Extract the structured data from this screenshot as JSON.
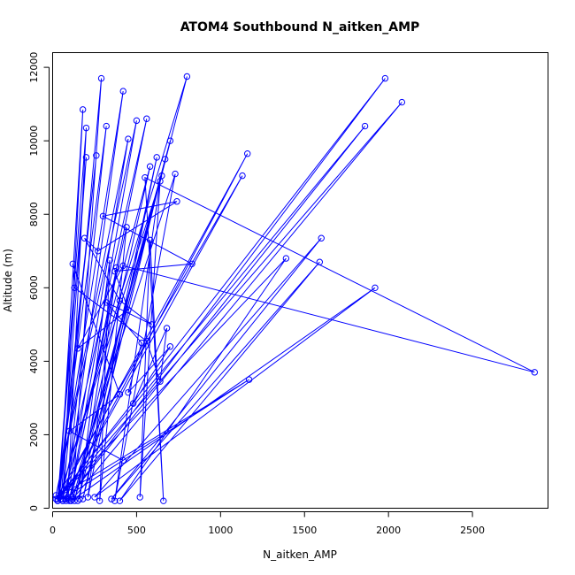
{
  "chart_data": {
    "type": "scatter",
    "title": "ATOM4 Southbound N_aitken_AMP",
    "xlabel": "N_aitken_AMP",
    "ylabel": "Altitude (m)",
    "xlim": [
      0,
      2950
    ],
    "ylim": [
      0,
      12400
    ],
    "x_ticks": [
      0,
      500,
      1000,
      1500,
      2000,
      2500
    ],
    "y_ticks": [
      0,
      2000,
      4000,
      6000,
      8000,
      10000,
      12000
    ],
    "x_tick_labels": [
      "0",
      "500",
      "1000",
      "1500",
      "2000",
      "2500"
    ],
    "y_tick_labels": [
      "0",
      "2000",
      "4000",
      "6000",
      "8000",
      "10000",
      "12000"
    ],
    "line_color": "#0000ff",
    "marker": "open-circle",
    "grid": false,
    "series": [
      {
        "x": [
          120,
          290,
          60,
          180,
          40,
          260,
          30,
          420,
          80,
          320,
          30,
          200,
          90,
          450,
          20,
          500,
          100,
          560,
          50,
          200,
          30,
          650,
          120,
          700,
          150,
          800,
          40,
          1160,
          60,
          1130,
          20,
          1860,
          80,
          1980,
          30,
          2080,
          110,
          1920,
          250,
          1600,
          350,
          1590,
          400,
          1390,
          50,
          1170,
          60,
          580,
          130,
          670,
          180,
          620,
          210,
          380,
          160,
          340,
          280,
          440,
          100,
          730,
          370,
          640,
          520,
          580,
          660,
          550,
          2870,
          420,
          150,
          450,
          370,
          830,
          300,
          740,
          270,
          190,
          400,
          590,
          320,
          530,
          450,
          700,
          480,
          680,
          640,
          560,
          130,
          120,
          400,
          100,
          420
        ],
        "y": [
          300,
          11700,
          200,
          10850,
          300,
          9600,
          200,
          11350,
          250,
          10400,
          200,
          10350,
          300,
          10050,
          350,
          10550,
          200,
          10600,
          250,
          9550,
          200,
          9050,
          250,
          10000,
          200,
          11750,
          300,
          9650,
          200,
          9050,
          250,
          10400,
          200,
          11700,
          250,
          11050,
          200,
          6000,
          300,
          7350,
          250,
          6700,
          200,
          6800,
          350,
          3500,
          250,
          9300,
          200,
          9500,
          250,
          9550,
          300,
          6550,
          250,
          6750,
          200,
          7650,
          250,
          9100,
          200,
          8900,
          300,
          7300,
          200,
          9000,
          3700,
          6600,
          4350,
          5400,
          6450,
          6650,
          7950,
          8350,
          7000,
          7350,
          5650,
          5000,
          5600,
          4500,
          3150,
          4400,
          2850,
          4900,
          3450,
          4550,
          6000,
          6650,
          3100,
          2100,
          1300
        ]
      }
    ]
  }
}
